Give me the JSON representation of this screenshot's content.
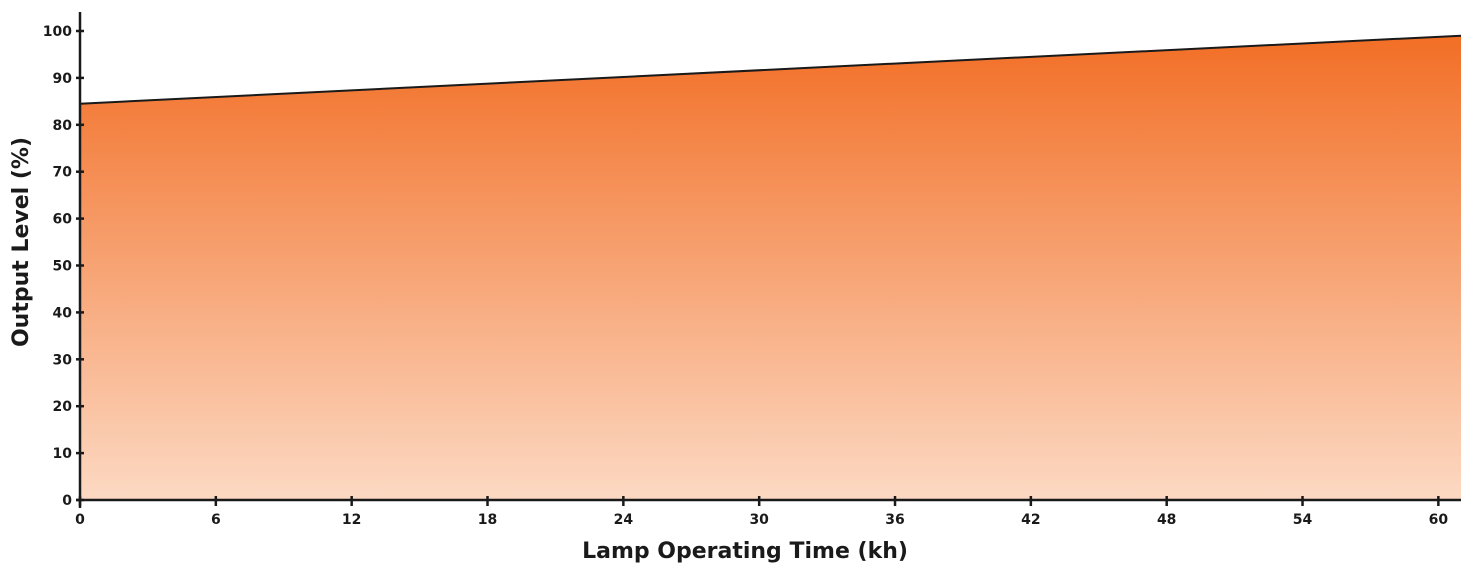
{
  "chart_data": {
    "type": "area",
    "title": "",
    "xlabel": "Lamp Operating Time (kh)",
    "ylabel": "Output Level (%)",
    "xlim": [
      0,
      61
    ],
    "ylim": [
      0,
      100
    ],
    "x_ticks": [
      0,
      6,
      12,
      18,
      24,
      30,
      36,
      42,
      48,
      54,
      60
    ],
    "x_tick_labels": [
      "0",
      "6",
      "12",
      "18",
      "24",
      "30",
      "36",
      "42",
      "48",
      "54",
      "60"
    ],
    "y_ticks": [
      0,
      10,
      20,
      30,
      40,
      50,
      60,
      70,
      80,
      90,
      100
    ],
    "y_tick_labels": [
      "0",
      "10",
      "20",
      "30",
      "40",
      "50",
      "60",
      "70",
      "80",
      "90",
      "100"
    ],
    "grid": false,
    "legend": "none",
    "series": [
      {
        "x": [
          0,
          61
        ],
        "values": [
          84.5,
          99
        ]
      }
    ],
    "colors": {
      "area_top": "#f26e25",
      "area_bottom": "#fcd9c3",
      "line": "#1a1a1a",
      "axis": "#1a1a1a"
    }
  }
}
